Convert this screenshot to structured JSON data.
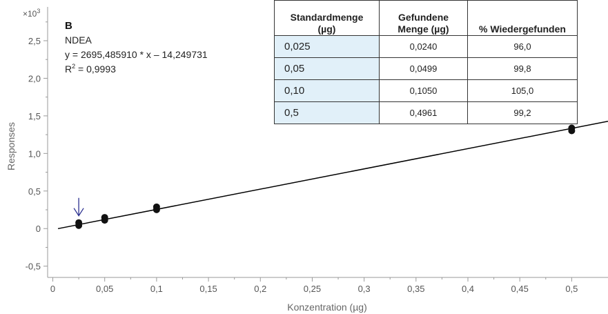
{
  "chart_data": {
    "type": "scatter",
    "panel_label": "B",
    "compound": "NDEA",
    "equation": "y = 2695,485910 * x  – 14,249731",
    "r_squared_prefix": "R",
    "r_squared_sup": "2",
    "r_squared_value": " = 0,9993",
    "multiplier_base": "×10",
    "multiplier_exp": "3",
    "xlabel": "Konzentration (µg)",
    "ylabel": "Responses",
    "xlim": [
      -0.005,
      0.535
    ],
    "ylim": [
      -0.65,
      2.95
    ],
    "x_ticks": [
      0,
      0.05,
      0.1,
      0.15,
      0.2,
      0.25,
      0.3,
      0.35,
      0.4,
      0.45,
      0.5
    ],
    "x_tick_labels": [
      "0",
      "0,05",
      "0,1",
      "0,15",
      "0,2",
      "0,25",
      "0,3",
      "0,35",
      "0,4",
      "0,45",
      "0,5"
    ],
    "y_ticks": [
      -0.5,
      0,
      0.5,
      1.0,
      1.5,
      2.0,
      2.5
    ],
    "y_tick_labels": [
      "-0,5",
      "0",
      "0,5",
      "1,0",
      "1,5",
      "2,0",
      "2,5"
    ],
    "points": [
      {
        "x": 0.025,
        "y": 0.06
      },
      {
        "x": 0.05,
        "y": 0.13
      },
      {
        "x": 0.1,
        "y": 0.27
      },
      {
        "x": 0.5,
        "y": 1.32
      }
    ],
    "fit_line": {
      "x_start": 0.005,
      "x_end": 0.535,
      "slope": 2.69548591,
      "intercept": -0.014249731
    },
    "annotation_arrow_x": 0.025,
    "colors": {
      "points": "#111111",
      "line": "#000000",
      "arrow": "#2a2f8f",
      "axis": "#999999",
      "table_highlight": "#e1f0f9"
    },
    "grid": false
  },
  "table": {
    "headers": [
      "Standardmenge\n(µg)",
      "Gefundene\nMenge (µg)",
      "% Wiedergefunden"
    ],
    "rows": [
      [
        "0,025",
        "0,0240",
        "96,0"
      ],
      [
        "0,05",
        "0,0499",
        "99,8"
      ],
      [
        "0,10",
        "0,1050",
        "105,0"
      ],
      [
        "0,5",
        "0,4961",
        "99,2"
      ]
    ]
  }
}
